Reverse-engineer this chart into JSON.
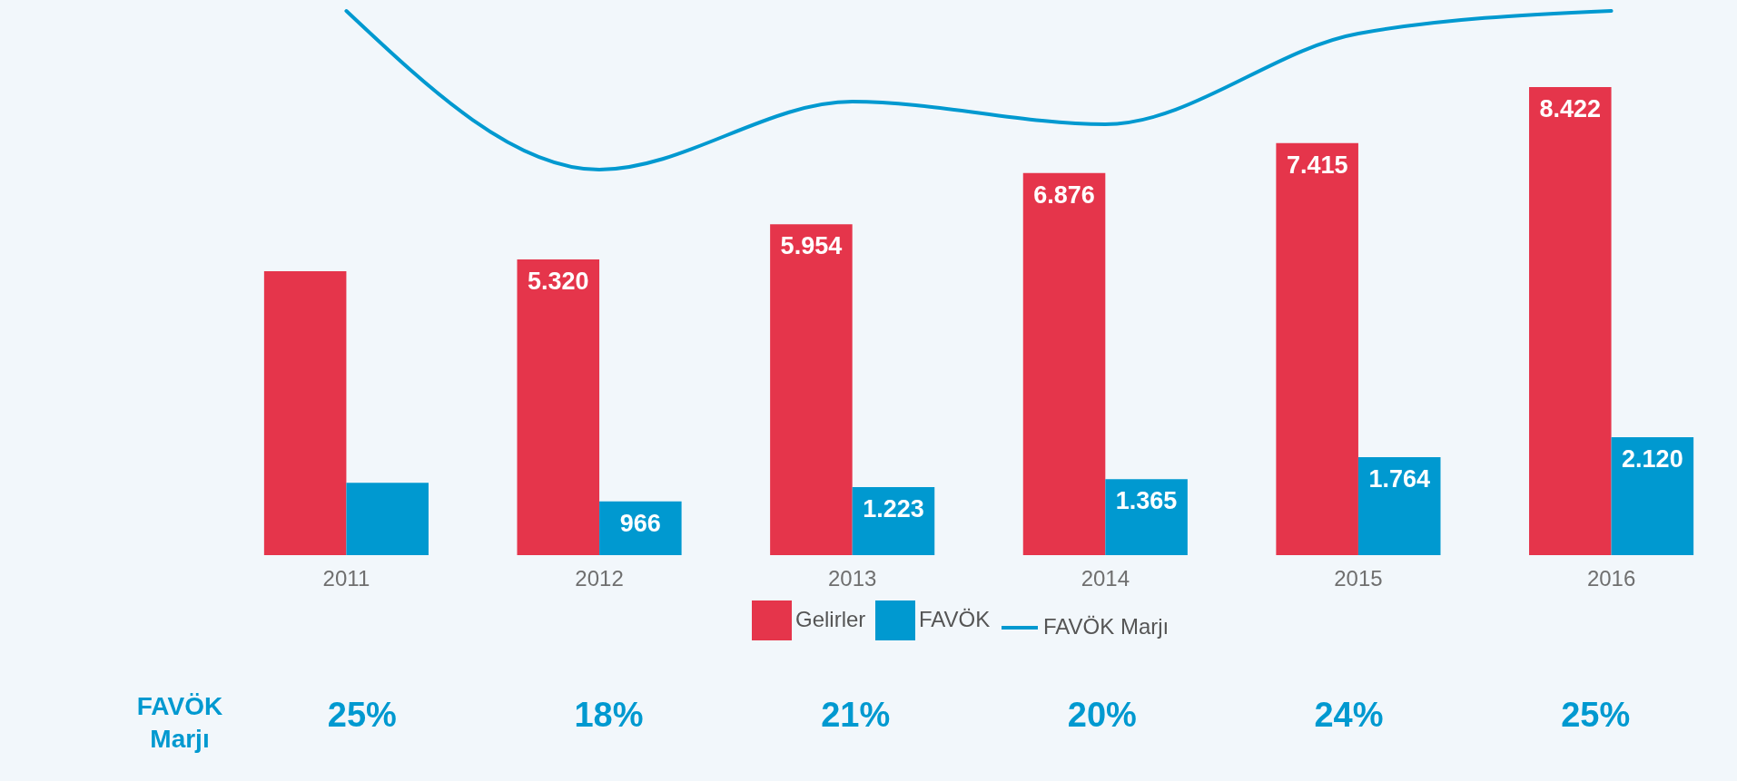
{
  "chart_data": {
    "type": "bar",
    "categories": [
      "2011",
      "2012",
      "2013",
      "2014",
      "2015",
      "2016"
    ],
    "series": [
      {
        "name": "Gelirler",
        "color": "#e5354b",
        "values": [
          5110,
          5320,
          5954,
          6876,
          7415,
          8422
        ],
        "value_labels": [
          null,
          "5.320",
          "5.954",
          "6.876",
          "7.415",
          "8.422"
        ]
      },
      {
        "name": "FAVÖK",
        "color": "#0099d0",
        "values": [
          1300,
          966,
          1223,
          1365,
          1764,
          2120
        ],
        "value_labels": [
          null,
          "966",
          "1.223",
          "1.365",
          "1.764",
          "2.120"
        ]
      },
      {
        "name": "FAVÖK Marjı",
        "type": "line",
        "color": "#0099d0",
        "axis": "y2",
        "values": [
          25,
          18,
          21,
          20,
          24,
          25
        ],
        "value_labels": [
          "25%",
          "18%",
          "21%",
          "20%",
          "24%",
          "25%"
        ]
      }
    ],
    "tick_labels": "x",
    "grid": false,
    "legend": "bottom",
    "marker": "none"
  }
}
